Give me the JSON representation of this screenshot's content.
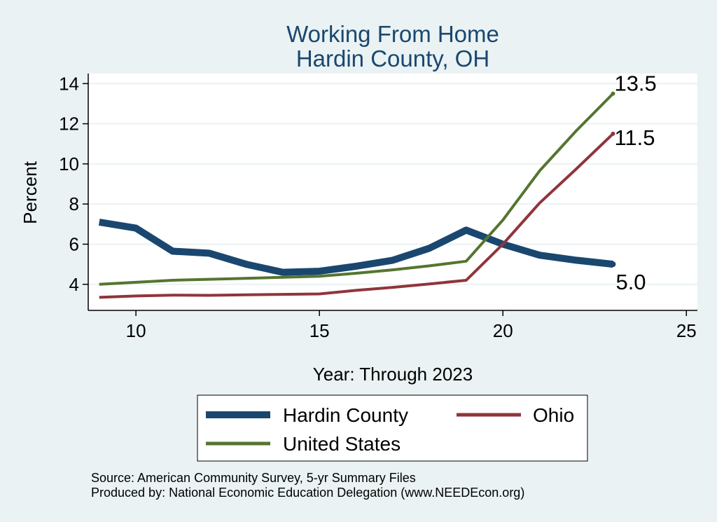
{
  "chart_data": {
    "type": "line",
    "title": [
      "Working From Home",
      "Hardin County, OH"
    ],
    "xlabel": "Year: Through 2023",
    "ylabel": "Percent",
    "xlim": [
      8.7,
      25.3
    ],
    "ylim": [
      2.7,
      14.5
    ],
    "xticks": [
      10,
      15,
      20,
      25
    ],
    "yticks": [
      4,
      6,
      8,
      10,
      12,
      14
    ],
    "grid": true,
    "legend_position": "bottom",
    "x": [
      9,
      10,
      11,
      12,
      13,
      14,
      15,
      16,
      17,
      18,
      19,
      20,
      21,
      22,
      23
    ],
    "series": [
      {
        "name": "Hardin County",
        "color": "#1a476f",
        "values": [
          7.1,
          6.8,
          5.65,
          5.55,
          5.0,
          4.6,
          4.65,
          4.9,
          5.2,
          5.8,
          6.7,
          6.0,
          5.45,
          5.2,
          5.0
        ],
        "end_label": "5.0"
      },
      {
        "name": "Ohio",
        "color": "#90353b",
        "values": [
          3.35,
          3.42,
          3.46,
          3.45,
          3.48,
          3.5,
          3.52,
          3.7,
          3.85,
          4.02,
          4.2,
          6.0,
          8.05,
          9.75,
          11.5
        ],
        "end_label": "11.5"
      },
      {
        "name": "United States",
        "color": "#55752f",
        "values": [
          4.0,
          4.1,
          4.2,
          4.25,
          4.3,
          4.35,
          4.4,
          4.55,
          4.72,
          4.92,
          5.15,
          7.2,
          9.65,
          11.65,
          13.5
        ],
        "end_label": "13.5"
      }
    ],
    "source_lines": [
      "Source: American Community Survey, 5-yr Summary Files",
      "Produced by: National Economic Education Delegation (www.NEEDEcon.org)"
    ]
  }
}
